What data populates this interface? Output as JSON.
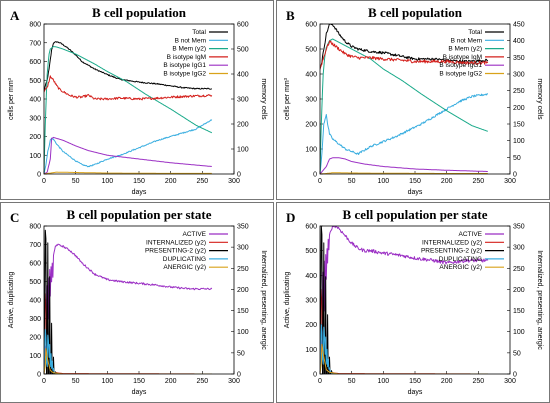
{
  "chart_data": [
    {
      "type": "line",
      "panel_label": "A",
      "title": "B cell population",
      "xlabel": "days",
      "ylabel": "cells per mm³",
      "y2label": "memory cells",
      "xlim": [
        0,
        300
      ],
      "xticks": [
        0,
        50,
        100,
        150,
        200,
        250,
        300
      ],
      "ylim": [
        0,
        800
      ],
      "yticks": [
        0,
        100,
        200,
        300,
        400,
        500,
        600,
        700,
        800
      ],
      "y2lim": [
        0,
        600
      ],
      "y2ticks": [
        0,
        100,
        200,
        300,
        400,
        500,
        600
      ],
      "legend_position": "top-right",
      "series": [
        {
          "name": "Total",
          "color": "#000000",
          "noise": 3,
          "x": [
            0,
            2,
            5,
            8,
            12,
            15,
            20,
            25,
            30,
            40,
            50,
            60,
            80,
            100,
            120,
            150,
            180,
            200,
            220,
            240,
            265
          ],
          "values": [
            440,
            470,
            500,
            560,
            660,
            700,
            705,
            700,
            690,
            665,
            635,
            600,
            560,
            530,
            505,
            490,
            480,
            470,
            460,
            455,
            455
          ]
        },
        {
          "name": "B not Mem",
          "color": "#3aaee0",
          "noise": 3,
          "x": [
            0,
            3,
            6,
            10,
            12,
            15,
            20,
            25,
            30,
            40,
            50,
            60,
            70,
            80,
            100,
            120,
            150,
            180,
            200,
            220,
            240,
            265
          ],
          "values": [
            0,
            50,
            120,
            180,
            190,
            185,
            160,
            140,
            120,
            95,
            70,
            50,
            40,
            50,
            80,
            100,
            140,
            180,
            200,
            220,
            240,
            290
          ]
        },
        {
          "name": "B Mem (y2)",
          "color": "#1aaa8a",
          "noise": 0,
          "x": [
            0,
            2,
            5,
            8,
            10,
            15,
            20,
            30,
            50,
            80,
            100,
            130,
            160,
            200,
            240,
            265
          ],
          "values": [
            0,
            200,
            400,
            480,
            500,
            510,
            508,
            500,
            480,
            440,
            410,
            370,
            320,
            260,
            195,
            165
          ]
        },
        {
          "name": "B isotype IgM",
          "color": "#d4201c",
          "noise": 6,
          "x": [
            0,
            5,
            10,
            15,
            20,
            25,
            30,
            40,
            50,
            60,
            70,
            80,
            100,
            120,
            150,
            180,
            200,
            230,
            265
          ],
          "values": [
            440,
            460,
            520,
            500,
            470,
            450,
            440,
            420,
            410,
            410,
            420,
            400,
            400,
            405,
            400,
            405,
            410,
            415,
            420
          ]
        },
        {
          "name": "B isotype IgG1",
          "color": "#9b2fc4",
          "noise": 0,
          "x": [
            0,
            5,
            10,
            12,
            15,
            20,
            30,
            40,
            50,
            70,
            100,
            150,
            200,
            265
          ],
          "values": [
            0,
            10,
            80,
            190,
            195,
            190,
            180,
            165,
            150,
            125,
            100,
            80,
            60,
            40
          ]
        },
        {
          "name": "B isotype IgG2",
          "color": "#d9a21a",
          "noise": 0,
          "x": [
            0,
            10,
            20,
            50,
            100,
            200,
            265
          ],
          "values": [
            0,
            5,
            10,
            8,
            5,
            3,
            3
          ]
        }
      ]
    },
    {
      "type": "line",
      "panel_label": "B",
      "title": "B cell population",
      "xlabel": "days",
      "ylabel": "cells per mm³",
      "y2label": "memory cells",
      "xlim": [
        0,
        300
      ],
      "xticks": [
        0,
        50,
        100,
        150,
        200,
        250,
        300
      ],
      "ylim": [
        0,
        600
      ],
      "yticks": [
        0,
        100,
        200,
        300,
        400,
        500,
        600
      ],
      "y2lim": [
        0,
        450
      ],
      "y2ticks": [
        0,
        50,
        100,
        150,
        200,
        250,
        300,
        350,
        400,
        450
      ],
      "legend_position": "top-right",
      "series": [
        {
          "name": "Total",
          "color": "#000000",
          "noise": 5,
          "x": [
            0,
            3,
            6,
            10,
            15,
            20,
            25,
            30,
            40,
            50,
            60,
            80,
            100,
            130,
            150,
            180,
            200,
            230,
            265
          ],
          "values": [
            420,
            450,
            500,
            560,
            600,
            598,
            580,
            560,
            530,
            510,
            500,
            490,
            485,
            470,
            460,
            460,
            455,
            450,
            455
          ]
        },
        {
          "name": "B not Mem",
          "color": "#3aaee0",
          "noise": 4,
          "x": [
            0,
            3,
            6,
            10,
            12,
            15,
            20,
            25,
            30,
            40,
            50,
            60,
            70,
            80,
            100,
            120,
            140,
            160,
            180,
            200,
            220,
            240,
            265
          ],
          "values": [
            0,
            80,
            200,
            240,
            200,
            160,
            140,
            130,
            120,
            100,
            90,
            80,
            95,
            110,
            130,
            150,
            175,
            200,
            230,
            260,
            290,
            310,
            320
          ]
        },
        {
          "name": "B Mem (y2)",
          "color": "#1aaa8a",
          "noise": 0,
          "x": [
            0,
            2,
            5,
            8,
            10,
            15,
            20,
            25,
            30,
            50,
            80,
            100,
            130,
            160,
            200,
            240,
            265
          ],
          "values": [
            0,
            150,
            300,
            360,
            380,
            400,
            405,
            400,
            395,
            375,
            345,
            315,
            280,
            240,
            190,
            145,
            128
          ]
        },
        {
          "name": "B isotype IgM",
          "color": "#d4201c",
          "noise": 6,
          "x": [
            0,
            5,
            10,
            15,
            20,
            30,
            40,
            50,
            60,
            80,
            100,
            130,
            150,
            180,
            200,
            230,
            265
          ],
          "values": [
            420,
            460,
            500,
            530,
            520,
            500,
            480,
            470,
            465,
            465,
            460,
            455,
            450,
            450,
            450,
            445,
            445
          ]
        },
        {
          "name": "B isotype IgG1",
          "color": "#9b2fc4",
          "noise": 0,
          "x": [
            0,
            10,
            15,
            20,
            30,
            40,
            50,
            70,
            100,
            150,
            200,
            265
          ],
          "values": [
            0,
            30,
            60,
            65,
            65,
            60,
            50,
            40,
            30,
            20,
            15,
            10
          ]
        },
        {
          "name": "B isotype IgG2",
          "color": "#d9a21a",
          "noise": 0,
          "x": [
            0,
            10,
            20,
            50,
            100,
            200,
            265
          ],
          "values": [
            0,
            2,
            5,
            4,
            3,
            2,
            2
          ]
        }
      ]
    },
    {
      "type": "line",
      "panel_label": "C",
      "title": "B cell population  per state",
      "xlabel": "days",
      "ylabel": "Active, duplicating",
      "y2label": "Internalized, presenting, anergic",
      "xlim": [
        0,
        300
      ],
      "xticks": [
        0,
        50,
        100,
        150,
        200,
        250,
        300
      ],
      "ylim": [
        0,
        800
      ],
      "yticks": [
        0,
        100,
        200,
        300,
        400,
        500,
        600,
        700,
        800
      ],
      "y2lim": [
        0,
        350
      ],
      "y2ticks": [
        0,
        50,
        100,
        150,
        200,
        250,
        300,
        350
      ],
      "legend_position": "top-right",
      "series": [
        {
          "name": "ACTIVE",
          "color": "#9b2fc4",
          "noise": 5,
          "x": [
            0,
            2,
            4,
            5,
            6,
            7,
            8,
            9,
            10,
            11,
            12,
            13,
            14,
            15,
            18,
            20,
            25,
            30,
            40,
            50,
            60,
            80,
            100,
            120,
            150,
            180,
            200,
            230,
            265
          ],
          "values": [
            0,
            150,
            50,
            480,
            200,
            520,
            300,
            560,
            420,
            580,
            500,
            600,
            520,
            640,
            690,
            700,
            695,
            690,
            670,
            640,
            600,
            540,
            510,
            500,
            490,
            480,
            470,
            460,
            460
          ]
        },
        {
          "name": "INTERNALIZED (y2)",
          "color": "#d4201c",
          "noise": 0,
          "x": [
            0,
            1,
            2,
            3,
            4,
            5,
            6,
            8,
            10,
            15,
            20,
            30,
            265
          ],
          "values": [
            0,
            60,
            160,
            190,
            140,
            100,
            70,
            30,
            15,
            6,
            3,
            1,
            0
          ]
        },
        {
          "name": "PRESENTING-2 (y2)",
          "color": "#000000",
          "noise": 0,
          "x": [
            0,
            1,
            2,
            3,
            4,
            5,
            6,
            7,
            8,
            9,
            10,
            11,
            12,
            13,
            14,
            15,
            16,
            17,
            18,
            20,
            265
          ],
          "values": [
            0,
            150,
            340,
            320,
            0,
            0,
            310,
            0,
            0,
            230,
            0,
            0,
            120,
            0,
            0,
            40,
            0,
            0,
            5,
            0,
            0
          ]
        },
        {
          "name": "DUPLICATING",
          "color": "#3aaee0",
          "noise": 0,
          "x": [
            0,
            1,
            2,
            3,
            4,
            5,
            6,
            7,
            8,
            9,
            10,
            11,
            12,
            13,
            14,
            15,
            16,
            18,
            20,
            265
          ],
          "values": [
            0,
            120,
            240,
            200,
            60,
            40,
            210,
            180,
            90,
            160,
            40,
            110,
            30,
            70,
            20,
            30,
            10,
            5,
            0,
            0
          ]
        },
        {
          "name": "ANERGIC (y2)",
          "color": "#d9a21a",
          "noise": 0,
          "x": [
            0,
            2,
            3,
            5,
            8,
            10,
            15,
            30,
            265
          ],
          "values": [
            0,
            20,
            60,
            40,
            20,
            8,
            3,
            0,
            0
          ]
        }
      ]
    },
    {
      "type": "line",
      "panel_label": "D",
      "title": "B cell population  per state",
      "xlabel": "days",
      "ylabel": "Active, duplicating",
      "y2label": "Internalized, presenting, anergic",
      "xlim": [
        0,
        300
      ],
      "xticks": [
        0,
        50,
        100,
        150,
        200,
        250,
        300
      ],
      "ylim": [
        0,
        600
      ],
      "yticks": [
        0,
        100,
        200,
        300,
        400,
        500,
        600
      ],
      "y2lim": [
        0,
        350
      ],
      "y2ticks": [
        0,
        50,
        100,
        150,
        200,
        250,
        300,
        350
      ],
      "legend_position": "top-right",
      "series": [
        {
          "name": "ACTIVE",
          "color": "#9b2fc4",
          "noise": 7,
          "x": [
            0,
            2,
            4,
            5,
            6,
            7,
            8,
            9,
            10,
            11,
            12,
            13,
            14,
            15,
            18,
            20,
            25,
            30,
            40,
            50,
            60,
            70,
            80,
            100,
            130,
            150,
            180,
            200,
            230,
            265
          ],
          "values": [
            0,
            130,
            40,
            420,
            150,
            460,
            250,
            490,
            380,
            510,
            450,
            540,
            500,
            560,
            590,
            600,
            600,
            590,
            560,
            530,
            510,
            500,
            500,
            490,
            480,
            470,
            460,
            450,
            460,
            460
          ]
        },
        {
          "name": "INTERNALIZED (y2)",
          "color": "#d4201c",
          "noise": 0,
          "x": [
            0,
            1,
            2,
            3,
            4,
            5,
            6,
            8,
            10,
            15,
            20,
            30,
            265
          ],
          "values": [
            0,
            60,
            170,
            200,
            150,
            110,
            80,
            35,
            15,
            6,
            3,
            1,
            0
          ]
        },
        {
          "name": "PRESENTING-2 (y2)",
          "color": "#000000",
          "noise": 0,
          "x": [
            0,
            1,
            2,
            3,
            4,
            5,
            6,
            7,
            8,
            9,
            10,
            11,
            12,
            13,
            14,
            15,
            16,
            17,
            18,
            20,
            265
          ],
          "values": [
            0,
            180,
            350,
            330,
            0,
            0,
            310,
            0,
            0,
            230,
            0,
            0,
            140,
            0,
            0,
            40,
            0,
            0,
            8,
            0,
            0
          ]
        },
        {
          "name": "DUPLICATING",
          "color": "#3aaee0",
          "noise": 0,
          "x": [
            0,
            1,
            2,
            3,
            4,
            5,
            6,
            7,
            8,
            9,
            10,
            11,
            12,
            13,
            14,
            15,
            16,
            18,
            20,
            265
          ],
          "values": [
            0,
            100,
            200,
            170,
            60,
            40,
            190,
            160,
            80,
            150,
            40,
            100,
            30,
            60,
            20,
            25,
            10,
            5,
            0,
            0
          ]
        },
        {
          "name": "ANERGIC (y2)",
          "color": "#d9a21a",
          "noise": 0,
          "x": [
            0,
            2,
            3,
            5,
            8,
            10,
            15,
            30,
            265
          ],
          "values": [
            0,
            25,
            70,
            50,
            25,
            10,
            4,
            0,
            0
          ]
        }
      ]
    }
  ]
}
